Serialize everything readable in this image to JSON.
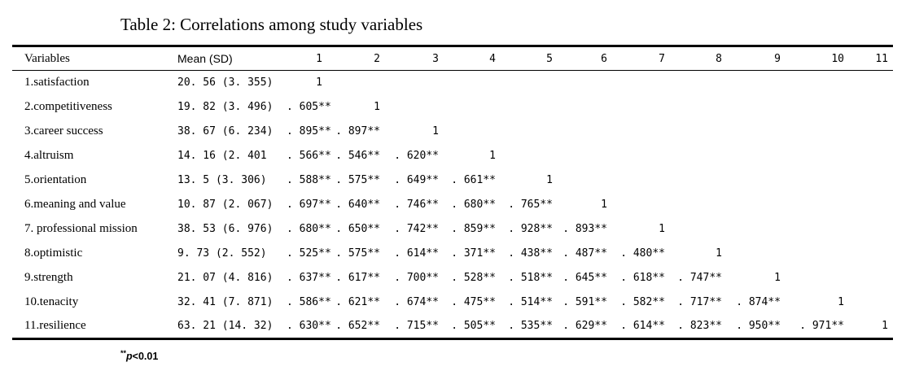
{
  "title": "Table 2: Correlations among study variables",
  "colors": {
    "background": "#ffffff",
    "text": "#000000",
    "rule": "#000000"
  },
  "table": {
    "headers": [
      "Variables",
      "Mean (SD)",
      "1",
      "2",
      "3",
      "4",
      "5",
      "6",
      "7",
      "8",
      "9",
      "10",
      "11"
    ],
    "rows": [
      {
        "label": "1.satisfaction",
        "mean": "20. 56 (3. 355)",
        "values": [
          "1"
        ]
      },
      {
        "label": "2.competitiveness",
        "mean": "19. 82 (3. 496)",
        "values": [
          ". 605**",
          "1"
        ]
      },
      {
        "label": "3.career success",
        "mean": "38. 67 (6. 234)",
        "values": [
          ". 895**",
          ". 897**",
          "1"
        ]
      },
      {
        "label": "4.altruism",
        "mean": "14. 16 (2. 401",
        "values": [
          ". 566**",
          ". 546**",
          ". 620**",
          "1"
        ]
      },
      {
        "label": "5.orientation",
        "mean": "13. 5 (3. 306)",
        "values": [
          ". 588**",
          ". 575**",
          ". 649**",
          ". 661**",
          "1"
        ]
      },
      {
        "label": "6.meaning and value",
        "mean": "10. 87 (2. 067)",
        "values": [
          ". 697**",
          ". 640**",
          ". 746**",
          ". 680**",
          ". 765**",
          "1"
        ]
      },
      {
        "label": "7. professional mission",
        "mean": "38. 53 (6. 976)",
        "values": [
          ". 680**",
          ". 650**",
          ". 742**",
          ". 859**",
          ". 928**",
          ". 893**",
          "1"
        ]
      },
      {
        "label": "8.optimistic",
        "mean": "9. 73 (2. 552)",
        "values": [
          ". 525**",
          ". 575**",
          ". 614**",
          ". 371**",
          ". 438**",
          ". 487**",
          ". 480**",
          "1"
        ]
      },
      {
        "label": "9.strength",
        "mean": "21. 07 (4. 816)",
        "values": [
          ". 637**",
          ". 617**",
          ". 700**",
          ". 528**",
          ". 518**",
          ". 645**",
          ". 618**",
          ". 747**",
          "1"
        ]
      },
      {
        "label": "10.tenacity",
        "mean": "32. 41 (7. 871)",
        "values": [
          ". 586**",
          ". 621**",
          ". 674**",
          ". 475**",
          ". 514**",
          ". 591**",
          ". 582**",
          ". 717**",
          ". 874**",
          "1"
        ]
      },
      {
        "label": "11.resilience",
        "mean": "63. 21 (14. 32)",
        "values": [
          ". 630**",
          ". 652**",
          ". 715**",
          ". 505**",
          ". 535**",
          ". 629**",
          ". 614**",
          ". 823**",
          ". 950**",
          ". 971**",
          "1"
        ]
      }
    ]
  },
  "footnote": {
    "stars": "**",
    "p_symbol": "p",
    "threshold": "<0.01"
  }
}
